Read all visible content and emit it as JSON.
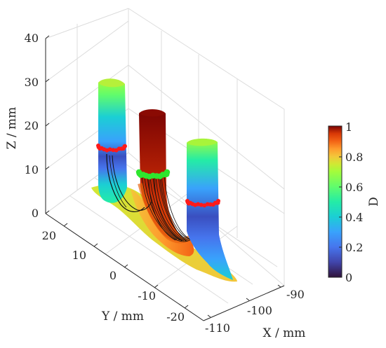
{
  "chart_data": {
    "type": "3d-surface",
    "title": "",
    "xlabel": "X / mm",
    "ylabel": "Y / mm",
    "zlabel": "Z / mm",
    "colorbar_label": "D",
    "xlim": [
      -112,
      -88
    ],
    "ylim": [
      -25,
      25
    ],
    "zlim": [
      0,
      40
    ],
    "clim": [
      0,
      1
    ],
    "colormap": "turbo",
    "grid": true,
    "x_ticks": [
      "-110",
      "-100",
      "-90"
    ],
    "y_ticks": [
      "20",
      "10",
      "0",
      "-10",
      "-20"
    ],
    "z_ticks": [
      "0",
      "10",
      "20",
      "30",
      "40"
    ],
    "colorbar_ticks": [
      "0",
      "0.2",
      "0.4",
      "0.6",
      "0.8",
      "1"
    ],
    "surfaces": [
      {
        "name_hint": "left tube",
        "damage_range": [
          0.15,
          0.5
        ],
        "top_z": 30
      },
      {
        "name_hint": "middle tube",
        "damage_range": [
          0.85,
          1.0
        ],
        "top_z": 25
      },
      {
        "name_hint": "right tube",
        "damage_range": [
          0.15,
          0.5
        ],
        "top_z": 20
      }
    ],
    "markers": {
      "red_colour": "#ff1a1a",
      "green_colour": "#2ee62e"
    }
  }
}
